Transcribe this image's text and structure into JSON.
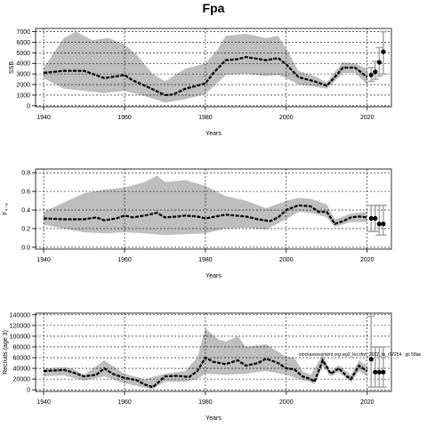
{
  "title": "Fpa",
  "annotation": "stockassessment.org wg2_lez.tfrw_2022_fa_r17254 ; git 58ae",
  "colors": {
    "band": "#bebebe",
    "line": "#000000",
    "uncertainty": "#a9a9a9",
    "grid": "#000000"
  },
  "chart_data": [
    {
      "type": "line",
      "panel": "ssb",
      "xlabel": "Years",
      "ylabel": "SSB",
      "xlim": [
        1938,
        2026
      ],
      "ylim": [
        -100,
        7300
      ],
      "xticks": [
        1940,
        1960,
        1980,
        2000,
        2020
      ],
      "yticks": [
        0,
        1000,
        2000,
        3000,
        4000,
        5000,
        6000,
        7000
      ],
      "grid": true,
      "series": [
        {
          "values": [
            [
              1940,
              3100
            ],
            [
              1945,
              3300
            ],
            [
              1950,
              3300
            ],
            [
              1955,
              2600
            ],
            [
              1960,
              2900
            ],
            [
              1962,
              2400
            ],
            [
              1965,
              1900
            ],
            [
              1970,
              1000
            ],
            [
              1972,
              1050
            ],
            [
              1975,
              1600
            ],
            [
              1980,
              2100
            ],
            [
              1982,
              3100
            ],
            [
              1985,
              4300
            ],
            [
              1988,
              4400
            ],
            [
              1990,
              4600
            ],
            [
              1995,
              4300
            ],
            [
              1998,
              4500
            ],
            [
              2000,
              3900
            ],
            [
              2003,
              2700
            ],
            [
              2007,
              2300
            ],
            [
              2010,
              1900
            ],
            [
              2012,
              2700
            ],
            [
              2014,
              3600
            ],
            [
              2017,
              3600
            ],
            [
              2020,
              2700
            ]
          ],
          "band_upper": [
            [
              1940,
              3600
            ],
            [
              1945,
              6400
            ],
            [
              1948,
              7000
            ],
            [
              1952,
              6200
            ],
            [
              1956,
              6400
            ],
            [
              1960,
              5800
            ],
            [
              1963,
              4800
            ],
            [
              1967,
              3000
            ],
            [
              1970,
              2300
            ],
            [
              1975,
              3500
            ],
            [
              1980,
              4000
            ],
            [
              1983,
              5300
            ],
            [
              1985,
              6600
            ],
            [
              1990,
              6800
            ],
            [
              1995,
              6400
            ],
            [
              1998,
              6600
            ],
            [
              2000,
              5400
            ],
            [
              2003,
              3300
            ],
            [
              2007,
              2800
            ],
            [
              2010,
              2200
            ],
            [
              2012,
              3200
            ],
            [
              2014,
              4100
            ],
            [
              2017,
              4000
            ],
            [
              2020,
              3500
            ]
          ],
          "band_lower": [
            [
              1940,
              2600
            ],
            [
              1945,
              1600
            ],
            [
              1950,
              1400
            ],
            [
              1955,
              1200
            ],
            [
              1960,
              1400
            ],
            [
              1965,
              900
            ],
            [
              1970,
              300
            ],
            [
              1975,
              600
            ],
            [
              1980,
              1100
            ],
            [
              1985,
              2900
            ],
            [
              1990,
              3000
            ],
            [
              1995,
              2800
            ],
            [
              1998,
              2900
            ],
            [
              2000,
              2600
            ],
            [
              2003,
              2000
            ],
            [
              2007,
              1800
            ],
            [
              2010,
              1600
            ],
            [
              2012,
              2300
            ],
            [
              2014,
              3100
            ],
            [
              2017,
              3100
            ],
            [
              2020,
              2000
            ]
          ]
        }
      ],
      "points": [
        {
          "x": 2021,
          "y": 2900,
          "lo": 2300,
          "hi": 3600
        },
        {
          "x": 2022,
          "y": 3200,
          "lo": 2500,
          "hi": 4200
        },
        {
          "x": 2023,
          "y": 4100,
          "lo": 2800,
          "hi": 5500
        },
        {
          "x": 2024,
          "y": 5100,
          "lo": 3000,
          "hi": 7000
        }
      ]
    },
    {
      "type": "line",
      "panel": "f",
      "xlabel": "Years",
      "ylabel": "F₄₋₈",
      "xlim": [
        1938,
        2026
      ],
      "ylim": [
        -0.02,
        0.84
      ],
      "xticks": [
        1940,
        1960,
        1980,
        2000,
        2020
      ],
      "yticks": [
        0.0,
        0.2,
        0.4,
        0.6,
        0.8
      ],
      "ytick_labels": [
        "0.0",
        "0.2",
        "0.4",
        "0.6",
        "0.8"
      ],
      "grid": true,
      "series": [
        {
          "values": [
            [
              1940,
              0.31
            ],
            [
              1945,
              0.3
            ],
            [
              1950,
              0.3
            ],
            [
              1953,
              0.32
            ],
            [
              1955,
              0.29
            ],
            [
              1958,
              0.31
            ],
            [
              1960,
              0.34
            ],
            [
              1962,
              0.32
            ],
            [
              1965,
              0.34
            ],
            [
              1968,
              0.37
            ],
            [
              1970,
              0.32
            ],
            [
              1973,
              0.33
            ],
            [
              1975,
              0.34
            ],
            [
              1978,
              0.33
            ],
            [
              1980,
              0.31
            ],
            [
              1985,
              0.35
            ],
            [
              1990,
              0.33
            ],
            [
              1993,
              0.3
            ],
            [
              1996,
              0.28
            ],
            [
              1998,
              0.32
            ],
            [
              2000,
              0.4
            ],
            [
              2003,
              0.45
            ],
            [
              2006,
              0.44
            ],
            [
              2008,
              0.38
            ],
            [
              2010,
              0.38
            ],
            [
              2012,
              0.25
            ],
            [
              2014,
              0.28
            ],
            [
              2016,
              0.32
            ],
            [
              2018,
              0.33
            ],
            [
              2020,
              0.32
            ]
          ],
          "band_upper": [
            [
              1940,
              0.38
            ],
            [
              1945,
              0.48
            ],
            [
              1950,
              0.58
            ],
            [
              1955,
              0.62
            ],
            [
              1960,
              0.64
            ],
            [
              1965,
              0.7
            ],
            [
              1968,
              0.77
            ],
            [
              1970,
              0.7
            ],
            [
              1975,
              0.72
            ],
            [
              1980,
              0.66
            ],
            [
              1985,
              0.55
            ],
            [
              1990,
              0.5
            ],
            [
              1995,
              0.42
            ],
            [
              2000,
              0.5
            ],
            [
              2003,
              0.53
            ],
            [
              2006,
              0.52
            ],
            [
              2010,
              0.46
            ],
            [
              2012,
              0.3
            ],
            [
              2016,
              0.36
            ],
            [
              2020,
              0.38
            ]
          ],
          "band_lower": [
            [
              1940,
              0.24
            ],
            [
              1945,
              0.2
            ],
            [
              1950,
              0.16
            ],
            [
              1955,
              0.15
            ],
            [
              1960,
              0.16
            ],
            [
              1965,
              0.15
            ],
            [
              1970,
              0.13
            ],
            [
              1975,
              0.14
            ],
            [
              1980,
              0.15
            ],
            [
              1985,
              0.2
            ],
            [
              1990,
              0.21
            ],
            [
              1995,
              0.19
            ],
            [
              2000,
              0.3
            ],
            [
              2003,
              0.38
            ],
            [
              2006,
              0.37
            ],
            [
              2010,
              0.32
            ],
            [
              2012,
              0.22
            ],
            [
              2016,
              0.27
            ],
            [
              2020,
              0.27
            ]
          ]
        }
      ],
      "points": [
        {
          "x": 2021,
          "y": 0.31,
          "lo": 0.17,
          "hi": 0.45
        },
        {
          "x": 2022,
          "y": 0.31,
          "lo": 0.17,
          "hi": 0.45
        },
        {
          "x": 2023,
          "y": 0.25,
          "lo": 0.13,
          "hi": 0.45
        },
        {
          "x": 2024,
          "y": 0.25,
          "lo": 0.13,
          "hi": 0.45
        }
      ]
    },
    {
      "type": "line",
      "panel": "recruits",
      "xlabel": "Years",
      "ylabel": "Recruits (age 3)",
      "xlim": [
        1938,
        2026
      ],
      "ylim": [
        -3000,
        143000
      ],
      "xticks": [
        1940,
        1960,
        1980,
        2000,
        2020
      ],
      "yticks": [
        0,
        20000,
        40000,
        60000,
        80000,
        100000,
        120000,
        140000
      ],
      "grid": true,
      "series": [
        {
          "values": [
            [
              1940,
              35000
            ],
            [
              1945,
              37000
            ],
            [
              1947,
              33000
            ],
            [
              1950,
              25000
            ],
            [
              1953,
              28000
            ],
            [
              1955,
              40000
            ],
            [
              1957,
              30000
            ],
            [
              1960,
              22000
            ],
            [
              1963,
              18000
            ],
            [
              1965,
              10000
            ],
            [
              1967,
              5000
            ],
            [
              1970,
              25000
            ],
            [
              1973,
              26000
            ],
            [
              1976,
              24000
            ],
            [
              1978,
              35000
            ],
            [
              1980,
              60000
            ],
            [
              1982,
              52000
            ],
            [
              1985,
              48000
            ],
            [
              1988,
              55000
            ],
            [
              1990,
              45000
            ],
            [
              1993,
              50000
            ],
            [
              1995,
              58000
            ],
            [
              1998,
              50000
            ],
            [
              2000,
              40000
            ],
            [
              2002,
              38000
            ],
            [
              2004,
              25000
            ],
            [
              2006,
              20000
            ],
            [
              2007,
              15000
            ],
            [
              2009,
              55000
            ],
            [
              2011,
              30000
            ],
            [
              2013,
              40000
            ],
            [
              2015,
              25000
            ],
            [
              2016,
              20000
            ],
            [
              2018,
              45000
            ],
            [
              2020,
              35000
            ]
          ],
          "band_upper": [
            [
              1940,
              40000
            ],
            [
              1945,
              42000
            ],
            [
              1947,
              40000
            ],
            [
              1950,
              28000
            ],
            [
              1955,
              55000
            ],
            [
              1960,
              30000
            ],
            [
              1965,
              20000
            ],
            [
              1970,
              30000
            ],
            [
              1975,
              35000
            ],
            [
              1978,
              60000
            ],
            [
              1980,
              115000
            ],
            [
              1983,
              95000
            ],
            [
              1985,
              90000
            ],
            [
              1988,
              100000
            ],
            [
              1990,
              80000
            ],
            [
              1995,
              85000
            ],
            [
              2000,
              62000
            ],
            [
              2002,
              60000
            ],
            [
              2004,
              35000
            ],
            [
              2006,
              28000
            ],
            [
              2009,
              65000
            ],
            [
              2011,
              35000
            ],
            [
              2013,
              46000
            ],
            [
              2016,
              28000
            ],
            [
              2018,
              55000
            ],
            [
              2020,
              45000
            ]
          ],
          "band_lower": [
            [
              1940,
              25000
            ],
            [
              1945,
              27000
            ],
            [
              1950,
              17000
            ],
            [
              1955,
              25000
            ],
            [
              1960,
              12000
            ],
            [
              1965,
              4000
            ],
            [
              1967,
              1000
            ],
            [
              1970,
              15000
            ],
            [
              1975,
              15000
            ],
            [
              1978,
              20000
            ],
            [
              1980,
              30000
            ],
            [
              1985,
              28000
            ],
            [
              1990,
              30000
            ],
            [
              1995,
              35000
            ],
            [
              2000,
              28000
            ],
            [
              2004,
              18000
            ],
            [
              2006,
              14000
            ],
            [
              2007,
              10000
            ],
            [
              2009,
              45000
            ],
            [
              2011,
              25000
            ],
            [
              2013,
              33000
            ],
            [
              2016,
              14000
            ],
            [
              2018,
              35000
            ],
            [
              2020,
              25000
            ]
          ]
        }
      ],
      "points": [
        {
          "x": 2021,
          "y": 57000,
          "lo": 5000,
          "hi": 137000
        },
        {
          "x": 2022,
          "y": 33000,
          "lo": 5000,
          "hi": 80000
        },
        {
          "x": 2023,
          "y": 33000,
          "lo": 5000,
          "hi": 80000
        },
        {
          "x": 2024,
          "y": 33000,
          "lo": 5000,
          "hi": 80000
        }
      ]
    }
  ]
}
